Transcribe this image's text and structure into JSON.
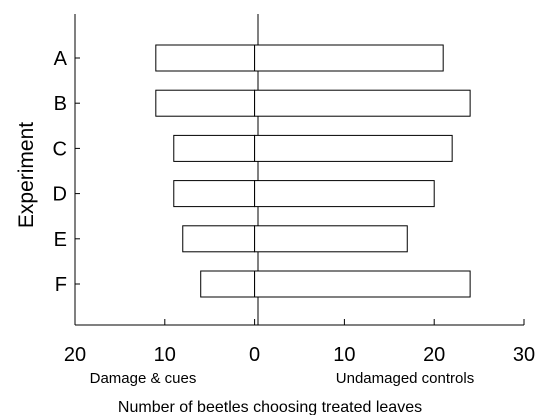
{
  "chart_data": {
    "type": "bar",
    "orientation": "horizontal",
    "ylabel": "Experiment",
    "xlabel": "Number of beetles choosing treated leaves",
    "categories": [
      "A",
      "B",
      "C",
      "D",
      "E",
      "F"
    ],
    "series": [
      {
        "name": "Damage & cues",
        "values": [
          11,
          11,
          9,
          9,
          8,
          6
        ]
      },
      {
        "name": "Undamaged controls",
        "values": [
          21,
          24,
          22,
          20,
          17,
          24
        ]
      }
    ],
    "xlim": [
      -20,
      30
    ],
    "xticks": [
      -20,
      -10,
      0,
      10,
      20,
      30
    ],
    "xtick_labels": [
      "20",
      "10",
      "0",
      "10",
      "20",
      "30"
    ],
    "side_labels": {
      "left": "Damage & cues",
      "right": "Undamaged controls"
    },
    "grid": false,
    "legend": "none"
  }
}
